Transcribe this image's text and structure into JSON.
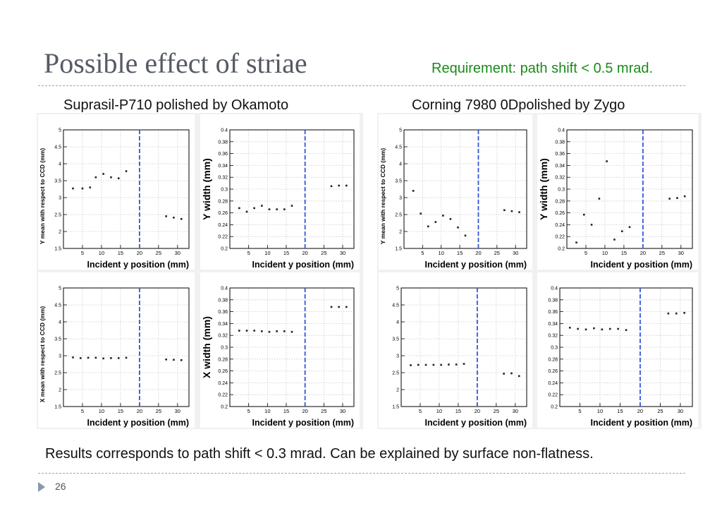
{
  "slide": {
    "title": "Possible effect of striae",
    "requirement": "Requirement: path shift < 0.5 mrad.",
    "left_label": "Suprasil-P710 polished by Okamoto",
    "right_label": "Corning 7980 0Dpolished by Zygo",
    "footnote": "Results corresponds to path shift < 0.3 mrad. Can be explained by surface non-flatness.",
    "page_number": "26"
  },
  "colors": {
    "title": "#555a63",
    "requirement": "#1a8a1a",
    "marker_line": "#3355dd",
    "rule": "#9aa5b8"
  },
  "chart_data": [
    {
      "id": "okamoto-y-mean",
      "type": "scatter",
      "xlabel": "Incident y position (mm)",
      "ylabel": "Y mean with respect to CCD (mm)",
      "ylim": [
        1.5,
        5
      ],
      "yticks": [
        "1.5",
        "2",
        "2.5",
        "3",
        "3.5",
        "4",
        "4.5",
        "5"
      ],
      "xlim": [
        0,
        33
      ],
      "xticks": [
        "5",
        "10",
        "15",
        "20",
        "25",
        "30"
      ],
      "vline": 20,
      "grid": true,
      "x": [
        2.5,
        5,
        7,
        8.5,
        10.5,
        12.5,
        14.5,
        16.5,
        27,
        29,
        31
      ],
      "y": [
        3.27,
        3.27,
        3.3,
        3.6,
        3.7,
        3.6,
        3.57,
        3.78,
        2.45,
        2.41,
        2.37
      ]
    },
    {
      "id": "okamoto-y-width",
      "type": "scatter",
      "xlabel": "Incident y position (mm)",
      "ylabel": "Y width (mm)",
      "ylim": [
        0.2,
        0.4
      ],
      "yticks": [
        "0.2",
        "0.22",
        "0.24",
        "0.26",
        "0.28",
        "0.3",
        "0.32",
        "0.34",
        "0.36",
        "0.38",
        "0.4"
      ],
      "xlim": [
        0,
        33
      ],
      "xticks": [
        "5",
        "10",
        "15",
        "20",
        "25",
        "30"
      ],
      "vline": 20,
      "grid": true,
      "x": [
        2.5,
        4.5,
        6.5,
        8.5,
        10.5,
        12.5,
        14.5,
        16.5,
        27,
        29,
        31
      ],
      "y": [
        0.268,
        0.262,
        0.268,
        0.272,
        0.266,
        0.266,
        0.266,
        0.272,
        0.305,
        0.306,
        0.306
      ]
    },
    {
      "id": "okamoto-x-mean",
      "type": "scatter",
      "xlabel": "Incident y position (mm)",
      "ylabel": "X mean with respect to CCD (mm)",
      "ylim": [
        1.5,
        5
      ],
      "yticks": [
        "1.5",
        "2",
        "2.5",
        "3",
        "3.5",
        "4",
        "4.5",
        "5"
      ],
      "xlim": [
        0,
        33
      ],
      "xticks": [
        "5",
        "10",
        "15",
        "20",
        "25",
        "30"
      ],
      "vline": 20,
      "grid": true,
      "x": [
        2.5,
        4.5,
        6.5,
        8.5,
        10.5,
        12.5,
        14.5,
        16.5,
        27,
        29,
        31
      ],
      "y": [
        2.95,
        2.93,
        2.94,
        2.94,
        2.92,
        2.93,
        2.93,
        2.94,
        2.89,
        2.88,
        2.87
      ]
    },
    {
      "id": "okamoto-x-width",
      "type": "scatter",
      "xlabel": "Incident y position (mm)",
      "ylabel": "X width (mm)",
      "ylim": [
        0.2,
        0.4
      ],
      "yticks": [
        "0.2",
        "0.22",
        "0.24",
        "0.26",
        "0.28",
        "0.3",
        "0.32",
        "0.34",
        "0.36",
        "0.38",
        "0.4"
      ],
      "xlim": [
        0,
        33
      ],
      "xticks": [
        "5",
        "10",
        "15",
        "20",
        "25",
        "30"
      ],
      "vline": 20,
      "grid": true,
      "x": [
        2.5,
        4.5,
        6.5,
        8.5,
        10.5,
        12.5,
        14.5,
        16.5,
        27,
        29,
        31
      ],
      "y": [
        0.328,
        0.328,
        0.328,
        0.327,
        0.326,
        0.327,
        0.327,
        0.326,
        0.368,
        0.368,
        0.368
      ]
    },
    {
      "id": "zygo-y-mean",
      "type": "scatter",
      "xlabel": "Incident y position (mm)",
      "ylabel": "Y mean with respect to CCD (mm)",
      "ylim": [
        1.5,
        5
      ],
      "yticks": [
        "1.5",
        "2",
        "2.5",
        "3",
        "3.5",
        "4",
        "4.5",
        "5"
      ],
      "xlim": [
        0,
        33
      ],
      "xticks": [
        "5",
        "10",
        "15",
        "20",
        "25",
        "30"
      ],
      "vline": 20,
      "grid": true,
      "x": [
        2.5,
        4.5,
        6.5,
        8.5,
        10.5,
        12.5,
        14.5,
        16.5,
        27,
        29,
        31
      ],
      "y": [
        3.2,
        2.53,
        2.15,
        2.28,
        2.47,
        2.37,
        2.12,
        1.88,
        2.63,
        2.6,
        2.57
      ]
    },
    {
      "id": "zygo-y-width",
      "type": "scatter",
      "xlabel": "Incident y position (mm)",
      "ylabel": "Y width (mm)",
      "ylim": [
        0.2,
        0.4
      ],
      "yticks": [
        "0.2",
        "0.22",
        "0.24",
        "0.26",
        "0.28",
        "0.3",
        "0.32",
        "0.34",
        "0.36",
        "0.38",
        "0.4"
      ],
      "xlim": [
        0,
        33
      ],
      "xticks": [
        "5",
        "10",
        "15",
        "20",
        "25",
        "30"
      ],
      "vline": 20,
      "grid": true,
      "x": [
        2.5,
        4.5,
        6.5,
        8.5,
        10.5,
        12.5,
        14.5,
        16.5,
        27,
        29,
        31
      ],
      "y": [
        0.21,
        0.257,
        0.24,
        0.284,
        0.347,
        0.215,
        0.229,
        0.236,
        0.284,
        0.285,
        0.288
      ]
    },
    {
      "id": "zygo-x-mean",
      "type": "scatter",
      "xlabel": "Incident y position (mm)",
      "ylabel": "",
      "ylim": [
        1.5,
        5
      ],
      "yticks": [
        "1.5",
        "2",
        "2.5",
        "3",
        "3.5",
        "4",
        "4.5",
        "5"
      ],
      "xlim": [
        0,
        33
      ],
      "xticks": [
        "5",
        "10",
        "15",
        "20",
        "25",
        "30"
      ],
      "vline": 20,
      "grid": true,
      "x": [
        2.5,
        4.5,
        6.5,
        8.5,
        10.5,
        12.5,
        14.5,
        16.5,
        27,
        29,
        31
      ],
      "y": [
        2.72,
        2.73,
        2.73,
        2.73,
        2.73,
        2.74,
        2.74,
        2.76,
        2.47,
        2.48,
        2.4
      ]
    },
    {
      "id": "zygo-x-width",
      "type": "scatter",
      "xlabel": "Incident y position (mm)",
      "ylabel": "",
      "ylim": [
        0.2,
        0.4
      ],
      "yticks": [
        "0.2",
        "0.22",
        "0.24",
        "0.26",
        "0.28",
        "0.3",
        "0.32",
        "0.34",
        "0.36",
        "0.38",
        "0.4"
      ],
      "xlim": [
        0,
        33
      ],
      "xticks": [
        "5",
        "10",
        "15",
        "20",
        "25",
        "30"
      ],
      "vline": 20,
      "grid": true,
      "x": [
        2.5,
        4.5,
        6.5,
        8.5,
        10.5,
        12.5,
        14.5,
        16.5,
        27,
        29,
        31
      ],
      "y": [
        0.333,
        0.331,
        0.33,
        0.332,
        0.33,
        0.331,
        0.331,
        0.329,
        0.357,
        0.357,
        0.358
      ]
    }
  ]
}
